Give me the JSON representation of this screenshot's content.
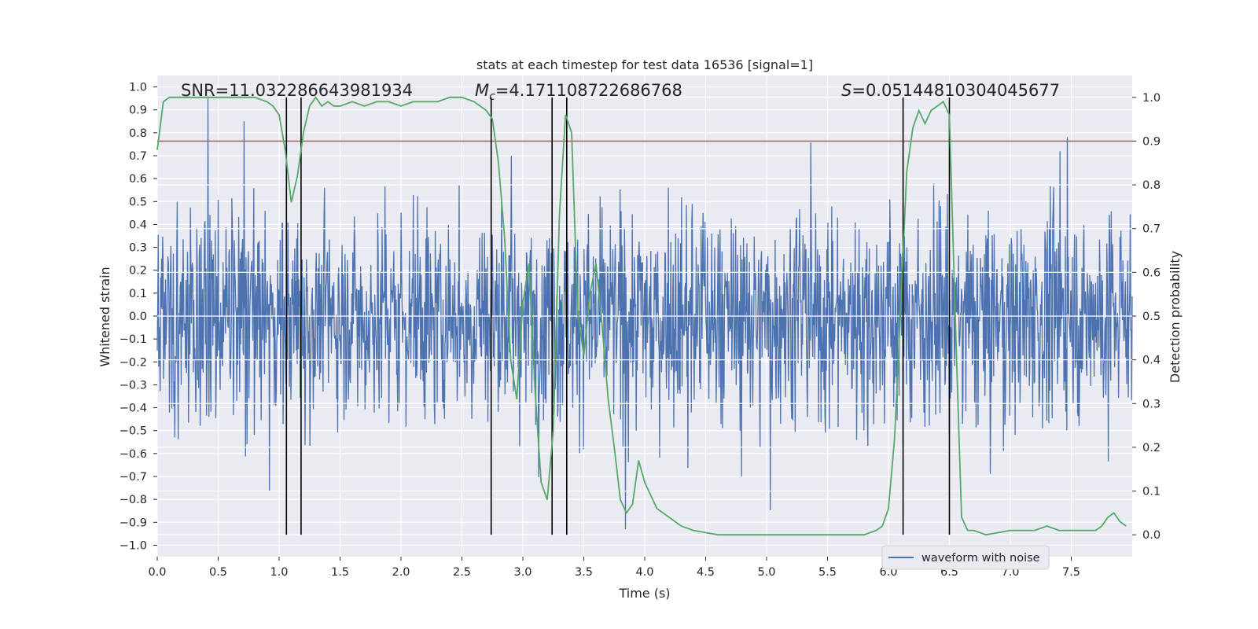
{
  "chart_data": {
    "type": "line",
    "title": "stats at each timestep for test data 16536 [signal=1]",
    "xlabel": "Time (s)",
    "ylabel_left": "Whitened strain",
    "ylabel_right": "Detection probability",
    "xlim": [
      0,
      8
    ],
    "ylim_left": [
      -1.05,
      1.05
    ],
    "ylim_right": [
      -0.05,
      1.05
    ],
    "grid": true,
    "background": "#eaeaf2",
    "x_ticks": [
      "0.0",
      "0.5",
      "1.0",
      "1.5",
      "2.0",
      "2.5",
      "3.0",
      "3.5",
      "4.0",
      "4.5",
      "5.0",
      "5.5",
      "6.0",
      "6.5",
      "7.0",
      "7.5"
    ],
    "y_left_ticks": [
      "1.0",
      "0.9",
      "0.8",
      "0.7",
      "0.6",
      "0.5",
      "0.4",
      "0.3",
      "0.2",
      "0.1",
      "0.0",
      "−0.1",
      "−0.2",
      "−0.3",
      "−0.4",
      "−0.5",
      "−0.6",
      "−0.7",
      "−0.8",
      "−0.9",
      "−1.0"
    ],
    "y_right_ticks": [
      "1.0",
      "0.9",
      "0.8",
      "0.7",
      "0.6",
      "0.5",
      "0.4",
      "0.3",
      "0.2",
      "0.1",
      "0.0"
    ],
    "annotations": {
      "snr": "SNR=11.032286643981934",
      "mc": "M",
      "mc_sub": "c",
      "mc_value": "=4.171108722686768",
      "s_symbol": "S",
      "s_value": "=0.05144810304045677"
    },
    "legend": {
      "position": "lower-right",
      "entries": [
        "waveform with noise"
      ]
    },
    "threshold": {
      "value_right": 0.9,
      "color": "#c44e52"
    },
    "vertical_markers": [
      1.06,
      1.18,
      2.74,
      3.24,
      3.36,
      6.12,
      6.5
    ],
    "series": [
      {
        "name": "waveform with noise",
        "axis": "left",
        "color": "#4c72b0",
        "style": "dense noise, approx range -0.9 to 0.95"
      },
      {
        "axis": "right",
        "color": "#55a868",
        "x": [
          0.0,
          0.05,
          0.1,
          0.2,
          0.3,
          0.5,
          0.7,
          0.8,
          0.9,
          0.95,
          1.0,
          1.05,
          1.1,
          1.15,
          1.2,
          1.25,
          1.3,
          1.35,
          1.4,
          1.45,
          1.5,
          1.6,
          1.7,
          1.8,
          1.9,
          2.0,
          2.1,
          2.2,
          2.3,
          2.4,
          2.5,
          2.6,
          2.65,
          2.7,
          2.75,
          2.8,
          2.85,
          2.9,
          2.95,
          3.0,
          3.05,
          3.1,
          3.15,
          3.2,
          3.25,
          3.3,
          3.35,
          3.4,
          3.45,
          3.5,
          3.55,
          3.6,
          3.65,
          3.7,
          3.75,
          3.8,
          3.85,
          3.9,
          3.95,
          4.0,
          4.05,
          4.1,
          4.2,
          4.3,
          4.4,
          4.6,
          4.8,
          5.0,
          5.2,
          5.4,
          5.6,
          5.8,
          5.9,
          5.95,
          6.0,
          6.05,
          6.1,
          6.15,
          6.2,
          6.25,
          6.3,
          6.35,
          6.4,
          6.45,
          6.5,
          6.55,
          6.6,
          6.65,
          6.7,
          6.8,
          7.0,
          7.1,
          7.2,
          7.3,
          7.4,
          7.5,
          7.6,
          7.7,
          7.75,
          7.8,
          7.85,
          7.9,
          7.95
        ],
        "values": [
          0.88,
          0.99,
          1.0,
          1.0,
          1.0,
          1.0,
          1.0,
          1.0,
          0.99,
          0.98,
          0.96,
          0.88,
          0.76,
          0.82,
          0.92,
          0.98,
          1.0,
          0.98,
          0.99,
          0.98,
          0.98,
          0.99,
          0.98,
          0.99,
          0.99,
          0.98,
          0.99,
          0.99,
          0.99,
          1.0,
          1.0,
          0.99,
          0.98,
          0.97,
          0.95,
          0.85,
          0.68,
          0.4,
          0.31,
          0.53,
          0.62,
          0.33,
          0.12,
          0.08,
          0.24,
          0.73,
          0.96,
          0.92,
          0.51,
          0.41,
          0.55,
          0.62,
          0.48,
          0.31,
          0.2,
          0.08,
          0.05,
          0.07,
          0.17,
          0.12,
          0.09,
          0.06,
          0.04,
          0.02,
          0.01,
          0.0,
          0.0,
          0.0,
          0.0,
          0.0,
          0.0,
          0.0,
          0.01,
          0.02,
          0.06,
          0.22,
          0.52,
          0.83,
          0.93,
          0.97,
          0.94,
          0.97,
          0.98,
          0.99,
          0.96,
          0.48,
          0.04,
          0.01,
          0.01,
          0.0,
          0.01,
          0.01,
          0.01,
          0.02,
          0.01,
          0.01,
          0.01,
          0.01,
          0.02,
          0.04,
          0.05,
          0.03,
          0.02
        ]
      }
    ]
  }
}
